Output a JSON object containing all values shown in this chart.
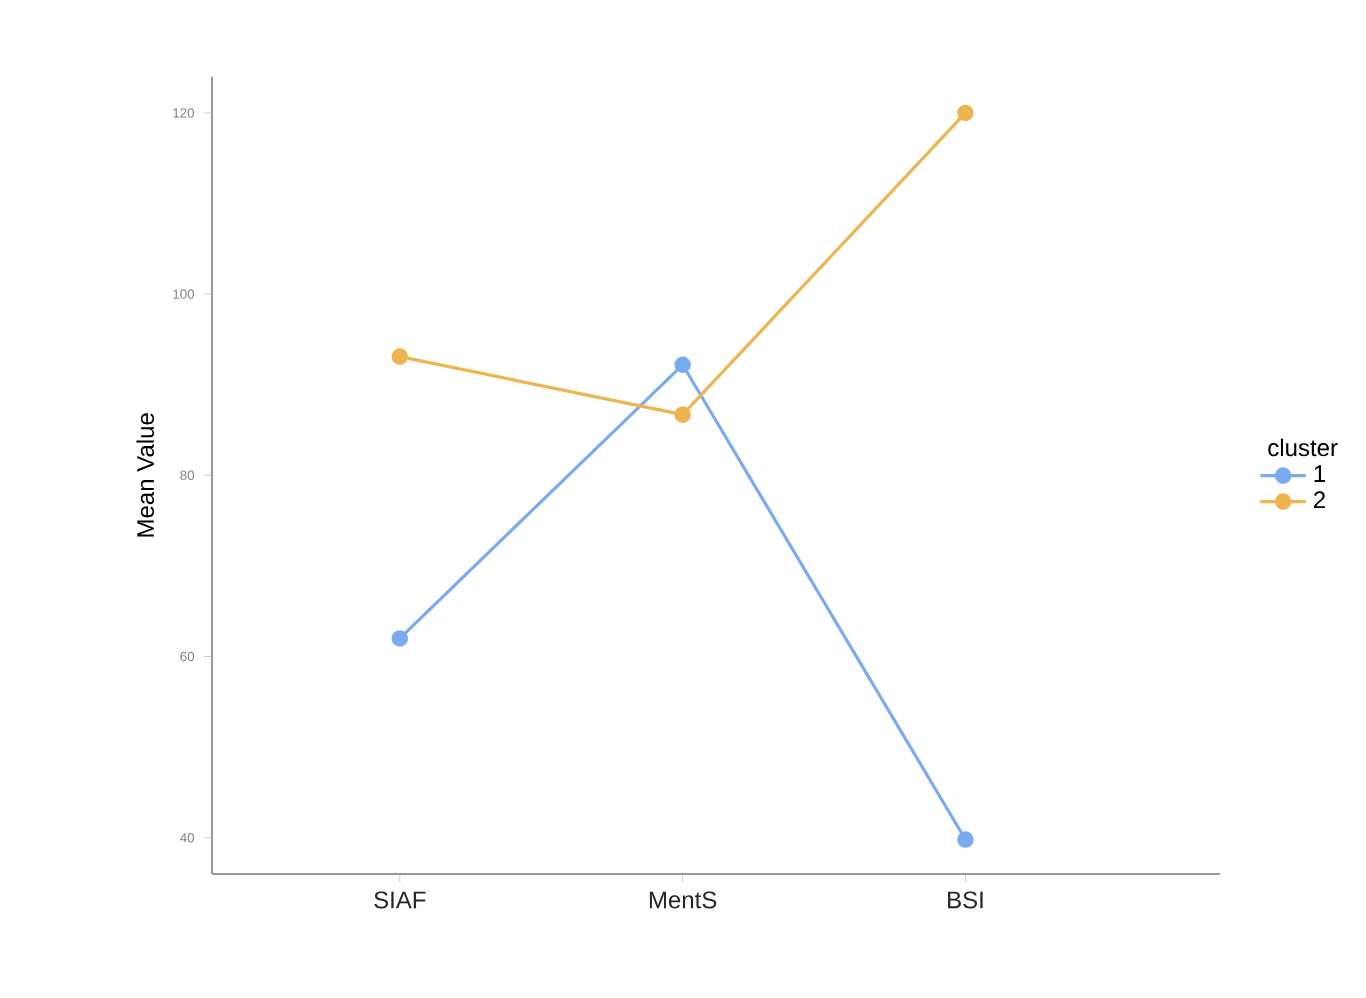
{
  "chart_data": {
    "type": "line",
    "ylabel": "Mean Value",
    "legend_title": "cluster",
    "categories": [
      "SIAF",
      "MentS",
      "BSI"
    ],
    "series": [
      {
        "name": "1",
        "color": "#7aaaf0",
        "values": [
          62.0,
          92.2,
          39.8
        ]
      },
      {
        "name": "2",
        "color": "#eeb450",
        "values": [
          93.1,
          86.7,
          120.0
        ]
      }
    ],
    "ylim": [
      36,
      124
    ],
    "yticks": [
      40,
      60,
      80,
      100,
      120
    ],
    "grid": false,
    "legend": "right",
    "marker": "circle",
    "line_style": "solid"
  }
}
